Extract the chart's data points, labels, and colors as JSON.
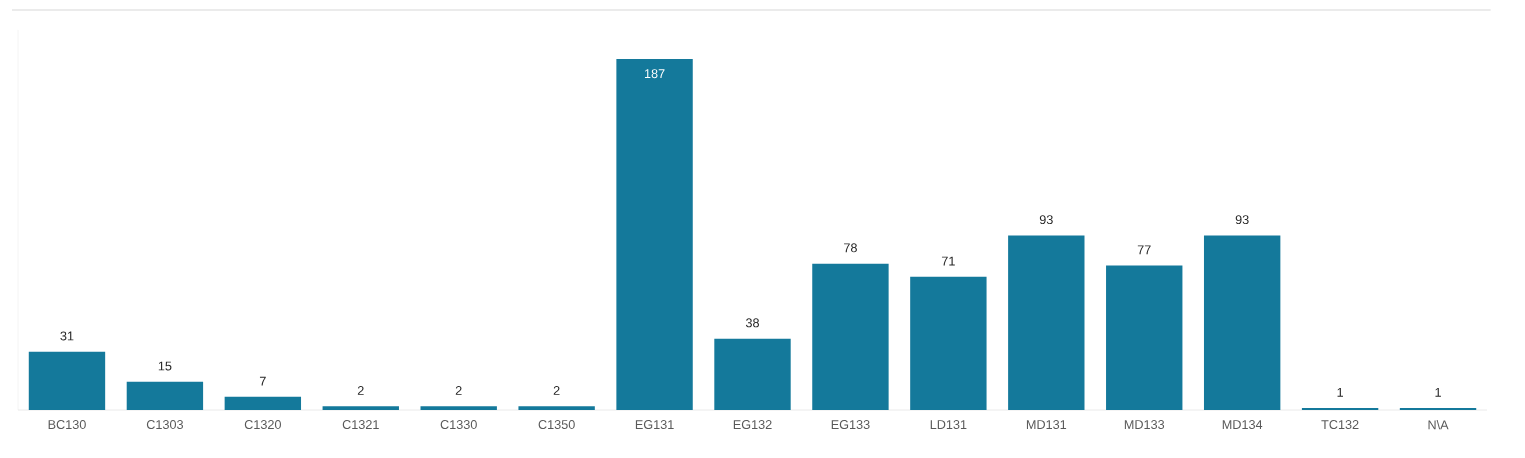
{
  "chart_data": {
    "type": "bar",
    "categories": [
      "BC130",
      "C1303",
      "C1320",
      "C1321",
      "C1330",
      "C1350",
      "EG131",
      "EG132",
      "EG133",
      "LD131",
      "MD131",
      "MD133",
      "MD134",
      "TC132",
      "N\\A"
    ],
    "values": [
      31,
      15,
      7,
      2,
      2,
      2,
      187,
      38,
      78,
      71,
      93,
      77,
      93,
      1,
      1
    ],
    "color": "#14799b",
    "data_labels": true
  }
}
